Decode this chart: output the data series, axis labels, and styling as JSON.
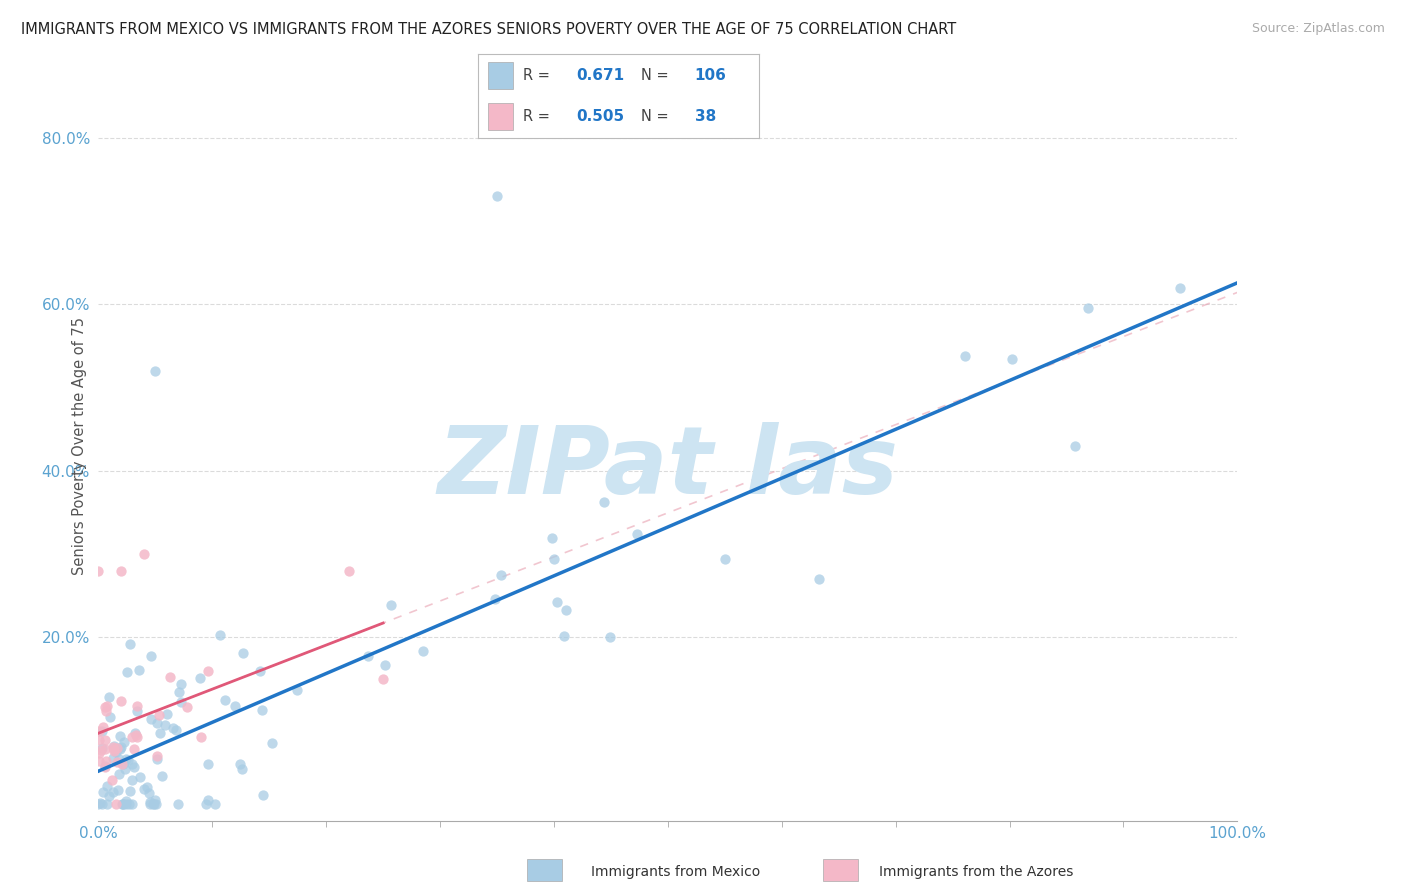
{
  "title": "IMMIGRANTS FROM MEXICO VS IMMIGRANTS FROM THE AZORES SENIORS POVERTY OVER THE AGE OF 75 CORRELATION CHART",
  "source": "Source: ZipAtlas.com",
  "ylabel": "Seniors Poverty Over the Age of 75",
  "R1": 0.671,
  "N1": 106,
  "R2": 0.505,
  "N2": 38,
  "color_mexico": "#a8cce4",
  "color_azores": "#f4b8c8",
  "color_trend_mexico": "#2176c7",
  "color_trend_azores": "#e05878",
  "color_tick": "#5ba3d0",
  "background_color": "#ffffff",
  "grid_color": "#d8d8d8",
  "legend1_label": "Immigrants from Mexico",
  "legend2_label": "Immigrants from the Azores",
  "watermark_color": "#cde4f2",
  "xlim": [
    0.0,
    1.0
  ],
  "ylim": [
    -0.02,
    0.88
  ]
}
